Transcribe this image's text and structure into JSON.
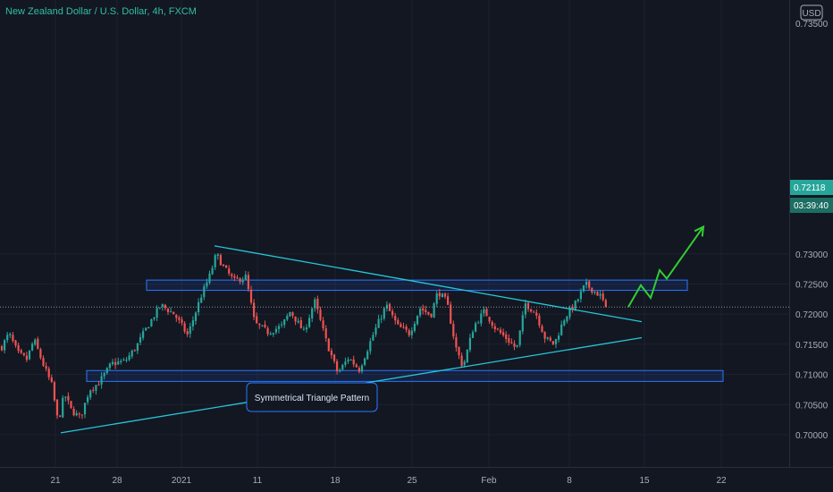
{
  "header": {
    "title": "New Zealand Dollar / U.S. Dollar, 4h, FXCM",
    "currency_badge": "USD"
  },
  "price_axis": {
    "top_partial_label": "0.73500",
    "current_price_label": "0.72118",
    "countdown_label": "03:39:40"
  },
  "annotation": {
    "label": "Symmetrical Triangle Pattern"
  },
  "colors": {
    "background": "#131722",
    "up_candle": "#26a69a",
    "down_candle": "#ef5350",
    "trendline": "#26c6da",
    "zone_border": "#2979ff",
    "zone_fill": "rgba(41,98,255,0.12)",
    "projection": "#32cd32",
    "current_price_bg": "#26a69a"
  },
  "chart_data": {
    "type": "candlestick",
    "title": "New Zealand Dollar / U.S. Dollar, 4h, FXCM",
    "ylim": [
      0.6975,
      0.7365
    ],
    "yticks": [
      0.7,
      0.705,
      0.71,
      0.715,
      0.72,
      0.725,
      0.73
    ],
    "ytick_labels": [
      "0.70000",
      "0.70500",
      "0.71000",
      "0.71500",
      "0.72000",
      "0.72500",
      "0.73000"
    ],
    "xticks": [
      "21",
      "28",
      "2021",
      "11",
      "18",
      "25",
      "Feb",
      "8",
      "15",
      "22"
    ],
    "grid": true,
    "current_price": 0.72118,
    "price_path": [
      [
        0,
        0.714
      ],
      [
        10,
        0.7168
      ],
      [
        20,
        0.7135
      ],
      [
        30,
        0.7125
      ],
      [
        38,
        0.7158
      ],
      [
        48,
        0.7118
      ],
      [
        58,
        0.7082
      ],
      [
        65,
        0.702
      ],
      [
        72,
        0.7068
      ],
      [
        80,
        0.704
      ],
      [
        90,
        0.7028
      ],
      [
        100,
        0.7075
      ],
      [
        110,
        0.7085
      ],
      [
        125,
        0.7118
      ],
      [
        140,
        0.7122
      ],
      [
        152,
        0.7145
      ],
      [
        165,
        0.718
      ],
      [
        180,
        0.7215
      ],
      [
        195,
        0.72
      ],
      [
        210,
        0.7165
      ],
      [
        225,
        0.723
      ],
      [
        235,
        0.7265
      ],
      [
        242,
        0.73
      ],
      [
        250,
        0.7278
      ],
      [
        262,
        0.7255
      ],
      [
        275,
        0.7262
      ],
      [
        285,
        0.7185
      ],
      [
        300,
        0.717
      ],
      [
        315,
        0.718
      ],
      [
        325,
        0.7205
      ],
      [
        340,
        0.717
      ],
      [
        352,
        0.7222
      ],
      [
        365,
        0.7155
      ],
      [
        378,
        0.7102
      ],
      [
        390,
        0.7128
      ],
      [
        402,
        0.7108
      ],
      [
        418,
        0.7168
      ],
      [
        432,
        0.7215
      ],
      [
        445,
        0.718
      ],
      [
        458,
        0.7168
      ],
      [
        470,
        0.721
      ],
      [
        482,
        0.7198
      ],
      [
        490,
        0.7238
      ],
      [
        500,
        0.722
      ],
      [
        510,
        0.7145
      ],
      [
        518,
        0.7112
      ],
      [
        530,
        0.718
      ],
      [
        542,
        0.7205
      ],
      [
        555,
        0.7175
      ],
      [
        568,
        0.7158
      ],
      [
        578,
        0.7142
      ],
      [
        588,
        0.7218
      ],
      [
        600,
        0.72
      ],
      [
        610,
        0.716
      ],
      [
        620,
        0.715
      ],
      [
        632,
        0.7195
      ],
      [
        645,
        0.722
      ],
      [
        655,
        0.725
      ],
      [
        665,
        0.7238
      ],
      [
        672,
        0.723
      ],
      [
        678,
        0.72118
      ]
    ],
    "drawings": {
      "resistance_zone": [
        0.72565,
        0.72395
      ],
      "support_zone": [
        0.71065,
        0.70885
      ],
      "upper_trendline": [
        [
          240,
          0.73133
        ],
        [
          718,
          0.71875
        ]
      ],
      "lower_trendline": [
        [
          68,
          0.70032
        ],
        [
          718,
          0.7161
        ]
      ],
      "projection_path": [
        [
          703,
          0.7212
        ],
        [
          717,
          0.7248
        ],
        [
          728,
          0.7227
        ],
        [
          738,
          0.7273
        ],
        [
          746,
          0.7259
        ],
        [
          787,
          0.7345
        ]
      ],
      "callout_anchor": [
        310,
        0.7059
      ]
    }
  }
}
